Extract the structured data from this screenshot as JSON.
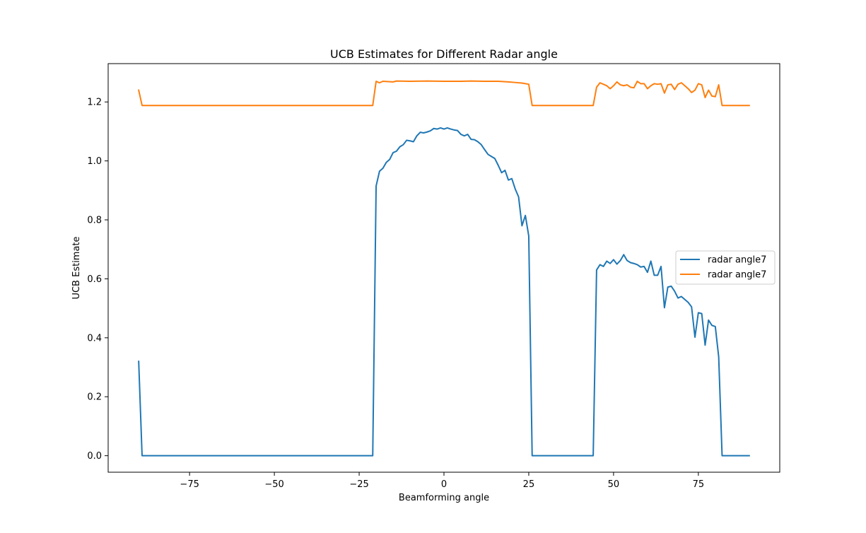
{
  "chart_data": {
    "type": "line",
    "title": "UCB Estimates for Different Radar angle",
    "xlabel": "Beamforming angle",
    "ylabel": "UCB Estimate",
    "xlim": [
      -99,
      99
    ],
    "ylim": [
      -0.056,
      1.33
    ],
    "xticks": [
      -75,
      -50,
      -25,
      0,
      25,
      50,
      75
    ],
    "yticks": [
      0.0,
      0.2,
      0.4,
      0.6,
      0.8,
      1.0,
      1.2
    ],
    "xtick_labels": [
      "−75",
      "−50",
      "−25",
      "0",
      "25",
      "50",
      "75"
    ],
    "ytick_labels": [
      "0.0",
      "0.2",
      "0.4",
      "0.6",
      "0.8",
      "1.0",
      "1.2"
    ],
    "grid": false,
    "legend_position": "center-right",
    "series": [
      {
        "name": "radar angle7",
        "color": "#1f77b4",
        "points": [
          [
            -90,
            0.32
          ],
          [
            -89,
            0.0
          ],
          [
            -21,
            0.0
          ],
          [
            -20,
            0.915
          ],
          [
            -19,
            0.965
          ],
          [
            -18,
            0.975
          ],
          [
            -17,
            0.995
          ],
          [
            -16,
            1.005
          ],
          [
            -15,
            1.028
          ],
          [
            -14,
            1.033
          ],
          [
            -13,
            1.048
          ],
          [
            -12,
            1.055
          ],
          [
            -11,
            1.07
          ],
          [
            -10,
            1.068
          ],
          [
            -9,
            1.065
          ],
          [
            -8,
            1.085
          ],
          [
            -7,
            1.097
          ],
          [
            -6,
            1.095
          ],
          [
            -5,
            1.098
          ],
          [
            -4,
            1.102
          ],
          [
            -3,
            1.11
          ],
          [
            -2,
            1.108
          ],
          [
            -1,
            1.112
          ],
          [
            0,
            1.108
          ],
          [
            1,
            1.112
          ],
          [
            2,
            1.108
          ],
          [
            3,
            1.105
          ],
          [
            4,
            1.103
          ],
          [
            5,
            1.09
          ],
          [
            6,
            1.085
          ],
          [
            7,
            1.09
          ],
          [
            8,
            1.073
          ],
          [
            9,
            1.072
          ],
          [
            10,
            1.065
          ],
          [
            11,
            1.055
          ],
          [
            12,
            1.038
          ],
          [
            13,
            1.022
          ],
          [
            14,
            1.015
          ],
          [
            15,
            1.008
          ],
          [
            16,
            0.985
          ],
          [
            17,
            0.96
          ],
          [
            18,
            0.968
          ],
          [
            19,
            0.935
          ],
          [
            20,
            0.94
          ],
          [
            21,
            0.905
          ],
          [
            22,
            0.878
          ],
          [
            23,
            0.78
          ],
          [
            24,
            0.815
          ],
          [
            25,
            0.745
          ],
          [
            26,
            0.0
          ],
          [
            44,
            0.0
          ],
          [
            45,
            0.63
          ],
          [
            46,
            0.648
          ],
          [
            47,
            0.642
          ],
          [
            48,
            0.66
          ],
          [
            49,
            0.652
          ],
          [
            50,
            0.665
          ],
          [
            51,
            0.65
          ],
          [
            52,
            0.662
          ],
          [
            53,
            0.682
          ],
          [
            54,
            0.662
          ],
          [
            55,
            0.655
          ],
          [
            56,
            0.652
          ],
          [
            57,
            0.648
          ],
          [
            58,
            0.64
          ],
          [
            59,
            0.642
          ],
          [
            60,
            0.622
          ],
          [
            61,
            0.66
          ],
          [
            62,
            0.612
          ],
          [
            63,
            0.612
          ],
          [
            64,
            0.642
          ],
          [
            65,
            0.502
          ],
          [
            66,
            0.572
          ],
          [
            67,
            0.575
          ],
          [
            68,
            0.558
          ],
          [
            69,
            0.535
          ],
          [
            70,
            0.54
          ],
          [
            71,
            0.53
          ],
          [
            72,
            0.52
          ],
          [
            73,
            0.505
          ],
          [
            74,
            0.402
          ],
          [
            75,
            0.485
          ],
          [
            76,
            0.482
          ],
          [
            77,
            0.375
          ],
          [
            78,
            0.46
          ],
          [
            79,
            0.442
          ],
          [
            80,
            0.438
          ],
          [
            81,
            0.335
          ],
          [
            82,
            0.0
          ],
          [
            90,
            0.0
          ]
        ]
      },
      {
        "name": "radar angle7",
        "color": "#ff7f0e",
        "points": [
          [
            -90,
            1.24
          ],
          [
            -89,
            1.188
          ],
          [
            -21,
            1.188
          ],
          [
            -20,
            1.27
          ],
          [
            -19,
            1.265
          ],
          [
            -18,
            1.27
          ],
          [
            -15,
            1.268
          ],
          [
            -14,
            1.271
          ],
          [
            -10,
            1.27
          ],
          [
            -5,
            1.271
          ],
          [
            0,
            1.27
          ],
          [
            5,
            1.27
          ],
          [
            8,
            1.271
          ],
          [
            12,
            1.27
          ],
          [
            16,
            1.27
          ],
          [
            19,
            1.268
          ],
          [
            21,
            1.266
          ],
          [
            23,
            1.264
          ],
          [
            25,
            1.26
          ],
          [
            26,
            1.188
          ],
          [
            44,
            1.188
          ],
          [
            45,
            1.25
          ],
          [
            46,
            1.265
          ],
          [
            47,
            1.26
          ],
          [
            48,
            1.255
          ],
          [
            49,
            1.245
          ],
          [
            50,
            1.255
          ],
          [
            51,
            1.268
          ],
          [
            52,
            1.258
          ],
          [
            53,
            1.255
          ],
          [
            54,
            1.258
          ],
          [
            55,
            1.25
          ],
          [
            56,
            1.248
          ],
          [
            57,
            1.27
          ],
          [
            58,
            1.262
          ],
          [
            59,
            1.262
          ],
          [
            60,
            1.245
          ],
          [
            61,
            1.255
          ],
          [
            62,
            1.262
          ],
          [
            63,
            1.26
          ],
          [
            64,
            1.262
          ],
          [
            65,
            1.23
          ],
          [
            66,
            1.258
          ],
          [
            67,
            1.26
          ],
          [
            68,
            1.242
          ],
          [
            69,
            1.26
          ],
          [
            70,
            1.265
          ],
          [
            71,
            1.255
          ],
          [
            72,
            1.245
          ],
          [
            73,
            1.232
          ],
          [
            74,
            1.24
          ],
          [
            75,
            1.262
          ],
          [
            76,
            1.258
          ],
          [
            77,
            1.215
          ],
          [
            78,
            1.24
          ],
          [
            79,
            1.22
          ],
          [
            80,
            1.218
          ],
          [
            81,
            1.258
          ],
          [
            82,
            1.188
          ],
          [
            90,
            1.188
          ]
        ]
      }
    ]
  }
}
